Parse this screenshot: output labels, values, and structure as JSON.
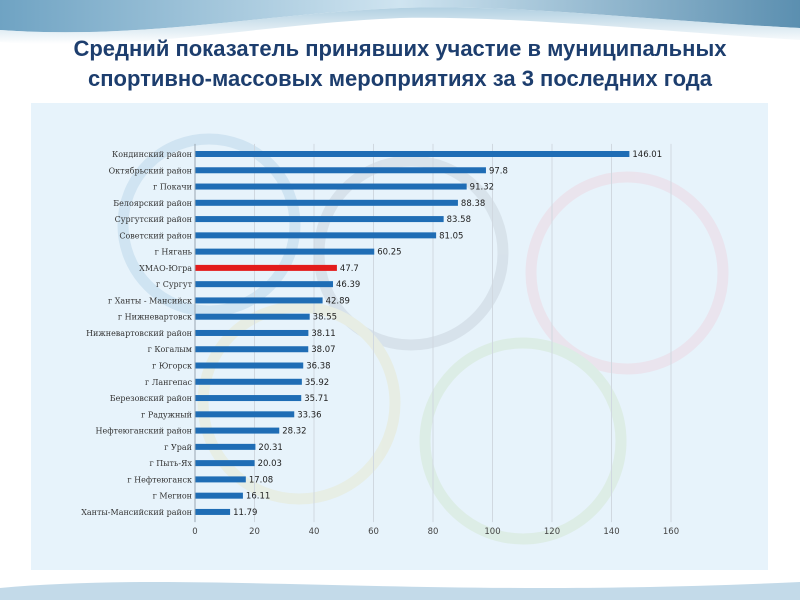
{
  "slide": {
    "title": "Средний показатель принявших участие в муниципальных спортивно-массовых мероприятиях за 3 последних года"
  },
  "colors": {
    "bar": "#1f6db5",
    "highlight_bar": "#e31b1b",
    "title": "#1d3e6e",
    "panel": "#e7f3fb",
    "gridline": "#d0d8e0"
  },
  "chart_data": {
    "type": "bar",
    "orientation": "horizontal",
    "title": "",
    "xlabel": "",
    "ylabel": "",
    "xlim": [
      0,
      160
    ],
    "x_ticks": [
      0,
      20,
      40,
      60,
      80,
      100,
      120,
      140,
      160
    ],
    "grid": "vertical",
    "legend": "none",
    "highlight_category": "ХМАО-Югра",
    "categories": [
      "Кондинский район",
      "Октябрьский район",
      "г Покачи",
      "Белоярский район",
      "Сургутский район",
      "Советский район",
      "г Нягань",
      "ХМАО-Югра",
      "г Сургут",
      "г Ханты - Мансийск",
      "г Нижневартовск",
      "Нижневартовский район",
      "г Когалым",
      "г Югорск",
      "г Лангепас",
      "Березовский район",
      "г Радужный",
      "Нефтеюганский район",
      "г Урай",
      "г Пыть-Ях",
      "г Нефтеюганск",
      "г Мегион",
      "Ханты-Мансийский район"
    ],
    "values": [
      146.01,
      97.8,
      91.32,
      88.38,
      83.58,
      81.05,
      60.25,
      47.7,
      46.39,
      42.89,
      38.55,
      38.11,
      38.07,
      36.38,
      35.92,
      35.71,
      33.36,
      28.32,
      20.31,
      20.03,
      17.08,
      16.11,
      11.79
    ]
  }
}
